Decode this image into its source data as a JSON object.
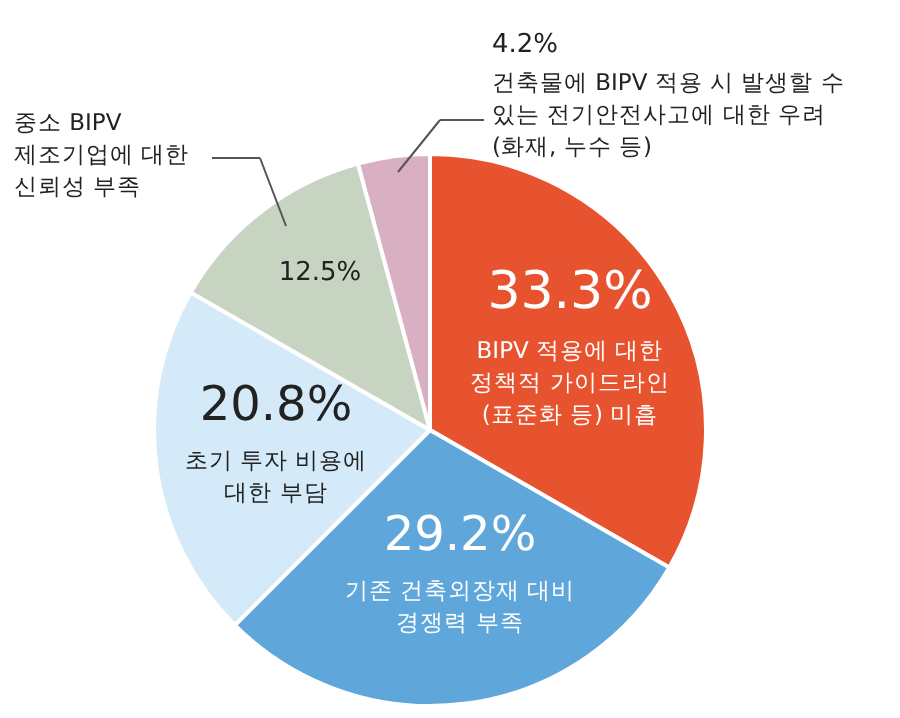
{
  "chart_data": {
    "type": "pie",
    "categories": [
      "BIPV 적용에 대한\n정책적 가이드라인\n(표준화 등) 미흡",
      "기존 건축외장재 대비\n경쟁력 부족",
      "초기 투자 비용에\n대한 부담",
      "중소 BIPV\n제조기업에 대한\n신뢰성 부족",
      "건축물에 BIPV 적용 시 발생할 수\n있는 전기안전사고에 대한 우려\n(화재, 누수 등)"
    ],
    "values": [
      33.3,
      29.2,
      20.8,
      12.5,
      4.2
    ],
    "value_labels": [
      "33.3%",
      "29.2%",
      "20.8%",
      "12.5%",
      "4.2%"
    ],
    "colors": [
      "#e8532f",
      "#5fa7da",
      "#d5eaf8",
      "#c8d4c2",
      "#d8b0c2"
    ]
  }
}
